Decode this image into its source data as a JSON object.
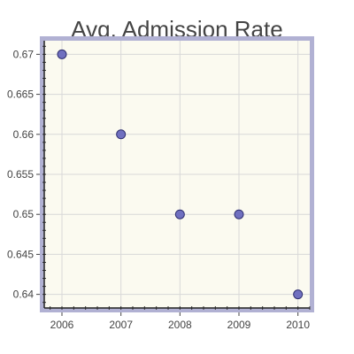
{
  "chart_data": {
    "type": "scatter",
    "title": "Avg. Admission Rate",
    "xlabel": "",
    "ylabel": "",
    "x": [
      2006,
      2007,
      2008,
      2009,
      2010
    ],
    "y": [
      0.67,
      0.66,
      0.65,
      0.65,
      0.64
    ],
    "xlim": [
      2005.7,
      2010.2
    ],
    "ylim": [
      0.6383,
      0.6717
    ],
    "x_ticks": [
      "2006",
      "2007",
      "2008",
      "2009",
      "2010"
    ],
    "y_ticks": [
      "0.64",
      "0.645",
      "0.65",
      "0.655",
      "0.66",
      "0.665",
      "0.67"
    ],
    "grid": true,
    "legend": "none",
    "colors": {
      "plot_background": "#fbfaf0",
      "border": "#b1b1d3",
      "marker_fill": "#7070c0",
      "marker_stroke": "#2f2f70",
      "grid": "#d8d8d8"
    }
  }
}
